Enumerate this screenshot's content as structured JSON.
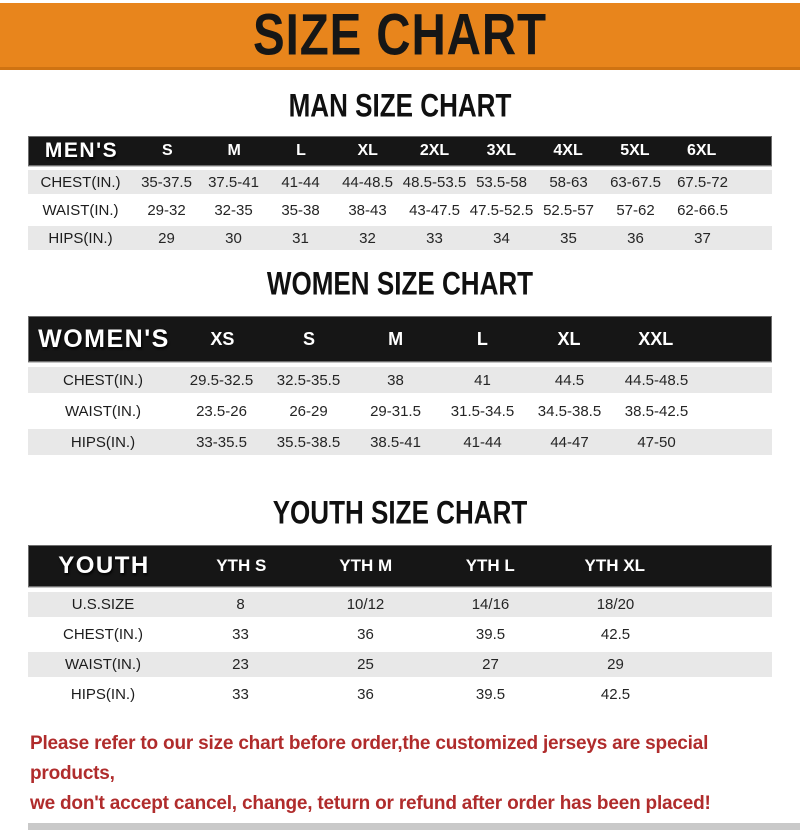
{
  "banner": {
    "title": "SIZE CHART"
  },
  "sections": [
    {
      "title": "MAN SIZE CHART",
      "label": "MEN'S",
      "columns": [
        "S",
        "M",
        "L",
        "XL",
        "2XL",
        "3XL",
        "4XL",
        "5XL",
        "6XL"
      ],
      "rows": [
        {
          "label": "CHEST(IN.)",
          "values": [
            "35-37.5",
            "37.5-41",
            "41-44",
            "44-48.5",
            "48.5-53.5",
            "53.5-58",
            "58-63",
            "63-67.5",
            "67.5-72"
          ]
        },
        {
          "label": "WAIST(IN.)",
          "values": [
            "29-32",
            "32-35",
            "35-38",
            "38-43",
            "43-47.5",
            "47.5-52.5",
            "52.5-57",
            "57-62",
            "62-66.5"
          ]
        },
        {
          "label": "HIPS(IN.)",
          "values": [
            "29",
            "30",
            "31",
            "32",
            "33",
            "34",
            "35",
            "36",
            "37"
          ]
        }
      ]
    },
    {
      "title": "WOMEN SIZE CHART",
      "label": "WOMEN'S",
      "columns": [
        "XS",
        "S",
        "M",
        "L",
        "XL",
        "XXL"
      ],
      "rows": [
        {
          "label": "CHEST(IN.)",
          "values": [
            "29.5-32.5",
            "32.5-35.5",
            "38",
            "41",
            "44.5",
            "44.5-48.5"
          ]
        },
        {
          "label": "WAIST(IN.)",
          "values": [
            "23.5-26",
            "26-29",
            "29-31.5",
            "31.5-34.5",
            "34.5-38.5",
            "38.5-42.5"
          ]
        },
        {
          "label": "HIPS(IN.)",
          "values": [
            "33-35.5",
            "35.5-38.5",
            "38.5-41",
            "41-44",
            "44-47",
            "47-50"
          ]
        }
      ]
    },
    {
      "title": "YOUTH SIZE CHART",
      "label": "YOUTH",
      "columns": [
        "YTH S",
        "YTH M",
        "YTH L",
        "YTH XL"
      ],
      "rows": [
        {
          "label": "U.S.SIZE",
          "values": [
            "8",
            "10/12",
            "14/16",
            "18/20"
          ]
        },
        {
          "label": "CHEST(IN.)",
          "values": [
            "33",
            "36",
            "39.5",
            "42.5"
          ]
        },
        {
          "label": "WAIST(IN.)",
          "values": [
            "23",
            "25",
            "27",
            "29"
          ]
        },
        {
          "label": "HIPS(IN.)",
          "values": [
            "33",
            "36",
            "39.5",
            "42.5"
          ]
        }
      ]
    }
  ],
  "disclaimer": {
    "line1": "Please refer to our size chart before order,the customized jerseys are special products,",
    "line2": "we don't accept cancel, change, teturn or refund after order has been placed!"
  },
  "colors": {
    "banner_bg": "#E8851C",
    "banner_border": "#CF7312",
    "header_bar_bg": "#161616",
    "row_alt_bg": "#E8E8E8",
    "disclaimer_red": "#B02C2C",
    "bottom_strip": "#C9C9C9"
  }
}
